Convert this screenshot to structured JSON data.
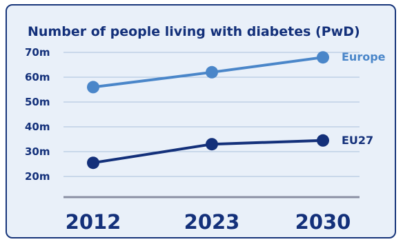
{
  "chart_data": {
    "type": "line",
    "title": "Number of people living with diabetes (PwD)",
    "categories": [
      "2012",
      "2023",
      "2030"
    ],
    "yticks": [
      "70m",
      "60m",
      "50m",
      "40m",
      "30m",
      "20m"
    ],
    "ytick_values": [
      70,
      60,
      50,
      40,
      30,
      20
    ],
    "ylim": [
      15,
      75
    ],
    "grid": true,
    "series": [
      {
        "name": "Europe",
        "values": [
          56,
          62,
          68
        ],
        "color": "#4a86c9"
      },
      {
        "name": "EU27",
        "values": [
          25.5,
          33,
          34.5
        ],
        "color": "#13307a"
      }
    ]
  }
}
